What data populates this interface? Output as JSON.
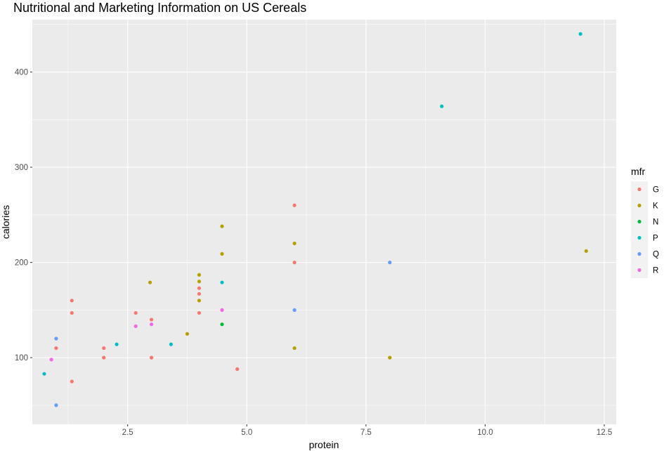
{
  "chart_data": {
    "type": "scatter",
    "title": "Nutritional and Marketing Information on US Cereals",
    "xlabel": "protein",
    "ylabel": "calories",
    "xlim": [
      0.5,
      12.75
    ],
    "ylim": [
      30,
      455
    ],
    "x_ticks": [
      2.5,
      5.0,
      7.5,
      10.0,
      12.5
    ],
    "x_tick_labels": [
      "2.5",
      "5.0",
      "7.5",
      "10.0",
      "12.5"
    ],
    "y_ticks": [
      100,
      200,
      300,
      400
    ],
    "y_tick_labels": [
      "100",
      "200",
      "300",
      "400"
    ],
    "grid": true,
    "legend_title": "mfr",
    "legend_position": "right",
    "series": [
      {
        "name": "G",
        "color": "#F8766D",
        "points": [
          {
            "x": 1.0,
            "y": 110
          },
          {
            "x": 1.33,
            "y": 160
          },
          {
            "x": 1.33,
            "y": 147
          },
          {
            "x": 1.33,
            "y": 75
          },
          {
            "x": 2.0,
            "y": 110
          },
          {
            "x": 2.0,
            "y": 100
          },
          {
            "x": 2.67,
            "y": 147
          },
          {
            "x": 3.0,
            "y": 140
          },
          {
            "x": 3.0,
            "y": 100
          },
          {
            "x": 4.0,
            "y": 173
          },
          {
            "x": 4.0,
            "y": 167
          },
          {
            "x": 4.0,
            "y": 147
          },
          {
            "x": 4.8,
            "y": 88
          },
          {
            "x": 6.0,
            "y": 260
          },
          {
            "x": 6.0,
            "y": 200
          }
        ]
      },
      {
        "name": "K",
        "color": "#B79F00",
        "points": [
          {
            "x": 2.97,
            "y": 179
          },
          {
            "x": 3.75,
            "y": 125
          },
          {
            "x": 4.0,
            "y": 187
          },
          {
            "x": 4.0,
            "y": 180
          },
          {
            "x": 4.0,
            "y": 160
          },
          {
            "x": 4.48,
            "y": 238
          },
          {
            "x": 4.48,
            "y": 209
          },
          {
            "x": 6.0,
            "y": 220
          },
          {
            "x": 6.0,
            "y": 110
          },
          {
            "x": 8.0,
            "y": 100
          },
          {
            "x": 12.12,
            "y": 212
          }
        ]
      },
      {
        "name": "N",
        "color": "#00BA38",
        "points": [
          {
            "x": 4.48,
            "y": 135
          }
        ]
      },
      {
        "name": "P",
        "color": "#00BFC4",
        "points": [
          {
            "x": 0.75,
            "y": 83
          },
          {
            "x": 2.27,
            "y": 114
          },
          {
            "x": 3.41,
            "y": 114
          },
          {
            "x": 4.48,
            "y": 179
          },
          {
            "x": 9.09,
            "y": 364
          },
          {
            "x": 12.0,
            "y": 440
          }
        ]
      },
      {
        "name": "Q",
        "color": "#619CFF",
        "points": [
          {
            "x": 1.0,
            "y": 120
          },
          {
            "x": 1.0,
            "y": 50
          },
          {
            "x": 6.0,
            "y": 150
          },
          {
            "x": 8.0,
            "y": 200
          }
        ]
      },
      {
        "name": "R",
        "color": "#F564E3",
        "points": [
          {
            "x": 0.9,
            "y": 98
          },
          {
            "x": 2.67,
            "y": 133
          },
          {
            "x": 3.0,
            "y": 135
          },
          {
            "x": 4.48,
            "y": 150
          }
        ]
      }
    ]
  }
}
